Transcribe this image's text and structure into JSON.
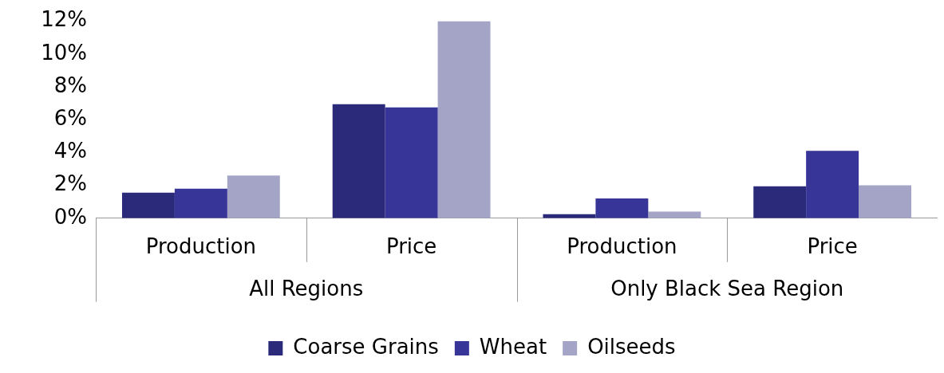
{
  "chart_data": {
    "type": "bar",
    "categories": [
      "Production",
      "Price",
      "Production",
      "Price"
    ],
    "series": [
      {
        "name": "Coarse Grains",
        "color": "#2b2a7a",
        "values": [
          1.55,
          6.95,
          0.25,
          1.95
        ]
      },
      {
        "name": "Wheat",
        "color": "#373597",
        "values": [
          1.8,
          6.75,
          1.2,
          4.1
        ]
      },
      {
        "name": "Oilseeds",
        "color": "#a3a4c6",
        "values": [
          2.6,
          12,
          0.4,
          2.0
        ]
      }
    ],
    "ylim": [
      0,
      12
    ],
    "yticks": [
      {
        "value": 0,
        "label": "0%"
      },
      {
        "value": 2,
        "label": "2%"
      },
      {
        "value": 4,
        "label": "4%"
      },
      {
        "value": 6,
        "label": "6%"
      },
      {
        "value": 8,
        "label": "8%"
      },
      {
        "value": 10,
        "label": "10%"
      },
      {
        "value": 12,
        "label": "12%"
      }
    ],
    "annotations": [
      "All Regions",
      "Only Black Sea Region"
    ],
    "grid": false,
    "legend": "bottom"
  }
}
